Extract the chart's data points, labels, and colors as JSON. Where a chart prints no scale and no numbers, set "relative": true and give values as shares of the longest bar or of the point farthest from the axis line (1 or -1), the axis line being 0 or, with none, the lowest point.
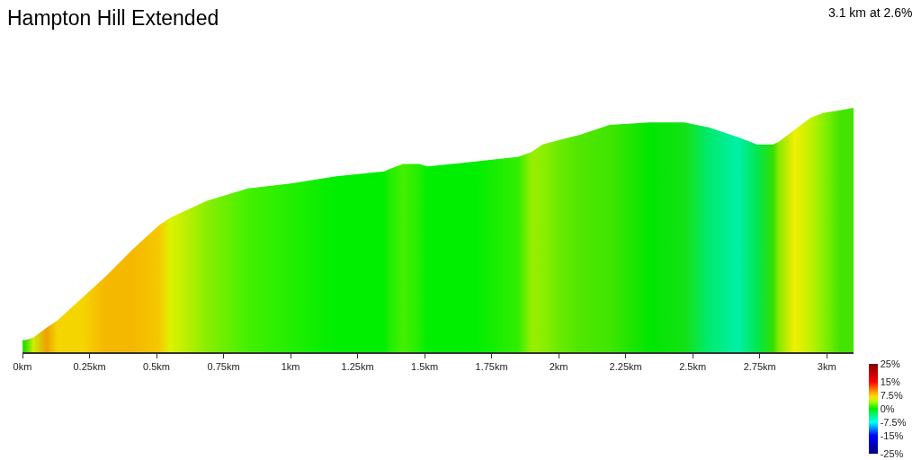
{
  "chart_data": {
    "type": "area",
    "title": "Hampton Hill Extended",
    "annotations": [
      "3.1 km at 2.6%"
    ],
    "relative": true,
    "x": [
      0,
      0.01,
      0.04,
      0.09,
      0.13,
      0.22,
      0.31,
      0.41,
      0.51,
      0.55,
      0.63,
      0.69,
      0.84,
      1.0,
      1.17,
      1.35,
      1.37,
      1.42,
      1.48,
      1.51,
      1.69,
      1.85,
      1.9,
      1.94,
      2.01,
      2.08,
      2.19,
      2.34,
      2.47,
      2.56,
      2.67,
      2.74,
      2.8,
      2.82,
      2.88,
      2.94,
      2.99,
      3.05,
      3.1
    ],
    "values": [
      0.05,
      0.05,
      0.06,
      0.1,
      0.13,
      0.22,
      0.31,
      0.42,
      0.52,
      0.55,
      0.59,
      0.62,
      0.67,
      0.69,
      0.72,
      0.74,
      0.75,
      0.77,
      0.77,
      0.76,
      0.78,
      0.8,
      0.82,
      0.85,
      0.87,
      0.89,
      0.93,
      0.94,
      0.94,
      0.92,
      0.88,
      0.85,
      0.85,
      0.86,
      0.91,
      0.96,
      0.98,
      0.99,
      1.0
    ],
    "colors": [
      "#33dd00",
      "#33dd00",
      "#ccee00",
      "#f0a000",
      "#f5d500",
      "#f5d500",
      "#f5b800",
      "#f5b800",
      "#f5c800",
      "#ddf200",
      "#b0ee00",
      "#88ee00",
      "#44f000",
      "#22ee00",
      "#00ee00",
      "#00ee00",
      "#22ee00",
      "#44f000",
      "#22ee00",
      "#00ee00",
      "#00ee00",
      "#33ee00",
      "#99ee00",
      "#8cee00",
      "#66ea00",
      "#50e600",
      "#40e600",
      "#00e600",
      "#14e114",
      "#00ea70",
      "#00f0a8",
      "#00e650",
      "#33e000",
      "#88e800",
      "#f0f000",
      "#c0f000",
      "#88f000",
      "#44e400",
      "#44e400"
    ],
    "clim": [
      -25,
      25
    ],
    "cticks": [
      {
        "value": 25,
        "label": "25%"
      },
      {
        "value": 15,
        "label": "15%"
      },
      {
        "value": 7.5,
        "label": "7.5%"
      },
      {
        "value": 0,
        "label": "0%"
      },
      {
        "value": -7.5,
        "label": "-7.5%"
      },
      {
        "value": -15,
        "label": "-15%"
      },
      {
        "value": -25,
        "label": "-25%"
      }
    ],
    "xlim": [
      0,
      3.1
    ],
    "xticks": [
      {
        "value": 0,
        "label": "0km"
      },
      {
        "value": 0.25,
        "label": "0.25km"
      },
      {
        "value": 0.5,
        "label": "0.5km"
      },
      {
        "value": 0.75,
        "label": "0.75km"
      },
      {
        "value": 1,
        "label": "1km"
      },
      {
        "value": 1.25,
        "label": "1.25km"
      },
      {
        "value": 1.5,
        "label": "1.5km"
      },
      {
        "value": 1.75,
        "label": "1.75km"
      },
      {
        "value": 2,
        "label": "2km"
      },
      {
        "value": 2.25,
        "label": "2.25km"
      },
      {
        "value": 2.5,
        "label": "2.5km"
      },
      {
        "value": 2.75,
        "label": "2.75km"
      },
      {
        "value": 3,
        "label": "3km"
      }
    ]
  }
}
